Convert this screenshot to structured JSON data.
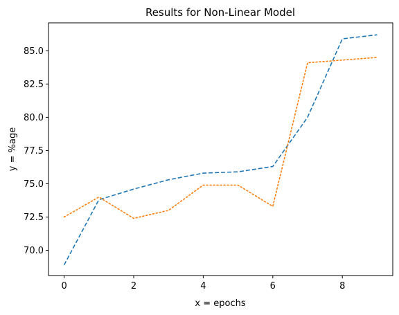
{
  "chart_data": {
    "type": "line",
    "title": "Results for Non-Linear Model",
    "xlabel": "x = epochs",
    "ylabel": "y = %age",
    "x": [
      0,
      1,
      2,
      3,
      4,
      5,
      6,
      7,
      8,
      9
    ],
    "xlim": [
      -0.45,
      9.45
    ],
    "ylim": [
      68.1,
      87.1
    ],
    "x_ticks": [
      0,
      2,
      4,
      6,
      8
    ],
    "x_tick_labels": [
      "0",
      "2",
      "4",
      "6",
      "8"
    ],
    "y_ticks": [
      70.0,
      72.5,
      75.0,
      77.5,
      80.0,
      82.5,
      85.0
    ],
    "y_tick_labels": [
      "70.0",
      "72.5",
      "75.0",
      "77.5",
      "80.0",
      "82.5",
      "85.0"
    ],
    "grid": false,
    "legend": "none",
    "series": [
      {
        "color": "#1f77b4",
        "linestyle": "dashed",
        "values": [
          68.9,
          73.8,
          74.6,
          75.3,
          75.8,
          75.9,
          76.3,
          80.0,
          85.9,
          86.2
        ]
      },
      {
        "color": "#ff7f0e",
        "linestyle": "dotted",
        "values": [
          72.5,
          74.0,
          72.4,
          73.0,
          74.9,
          74.9,
          73.3,
          84.1,
          84.3,
          84.5
        ]
      }
    ]
  }
}
